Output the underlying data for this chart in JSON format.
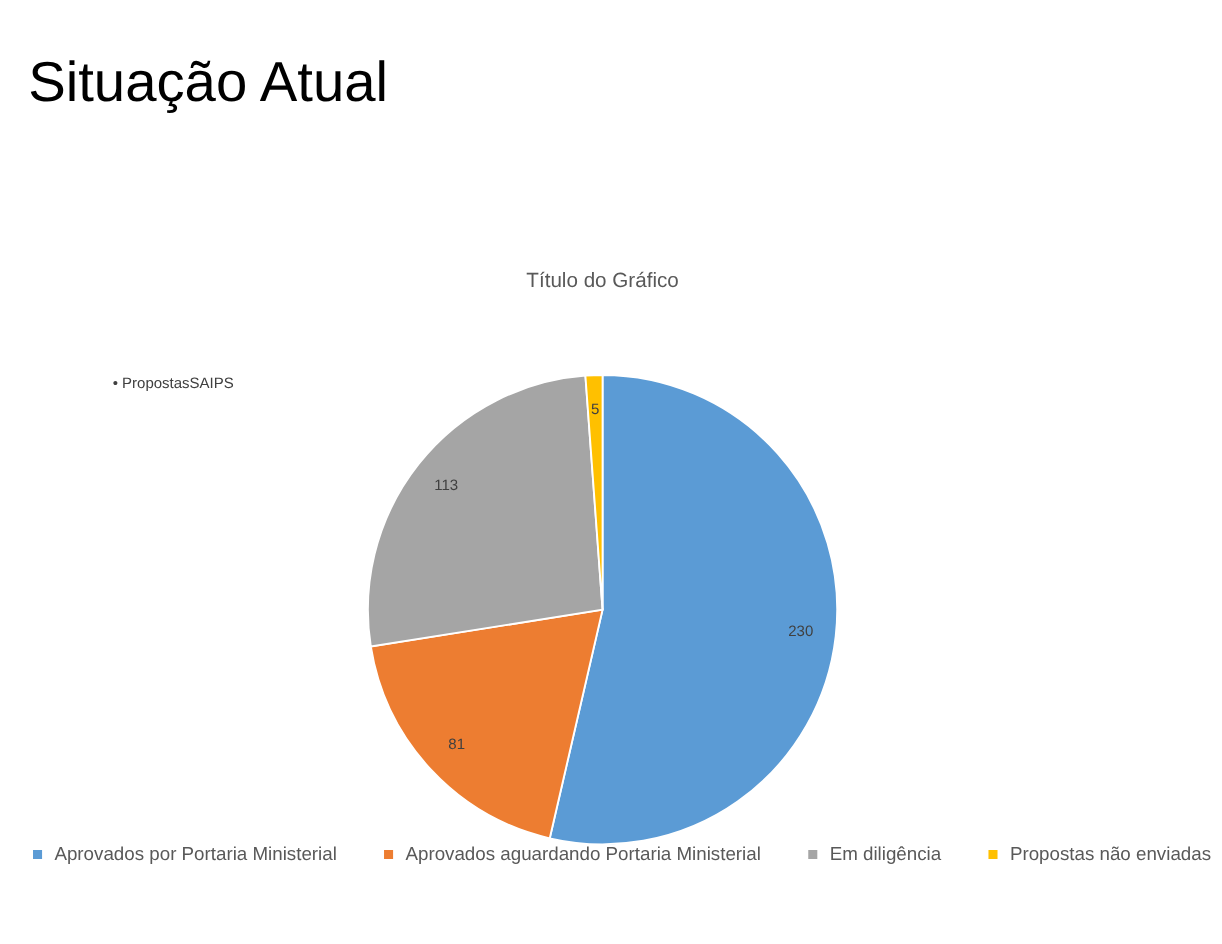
{
  "chart_data": {
    "type": "pie",
    "title": "Situação Atual",
    "subtitle": "Título do Gráfico",
    "categories": [
      "Aprovados por Portaria Ministerial",
      "Aprovados aguardando Portaria Ministerial",
      "Em diligência",
      "Propostas não enviadas"
    ],
    "values": [
      230,
      81,
      113,
      5
    ],
    "colors": [
      "#5b9bd5",
      "#ed7d31",
      "#a5a5a5",
      "#ffc000"
    ],
    "data_labels": true,
    "legend": "bottom",
    "annotations": [
      "• PropostasSAIPS"
    ]
  }
}
